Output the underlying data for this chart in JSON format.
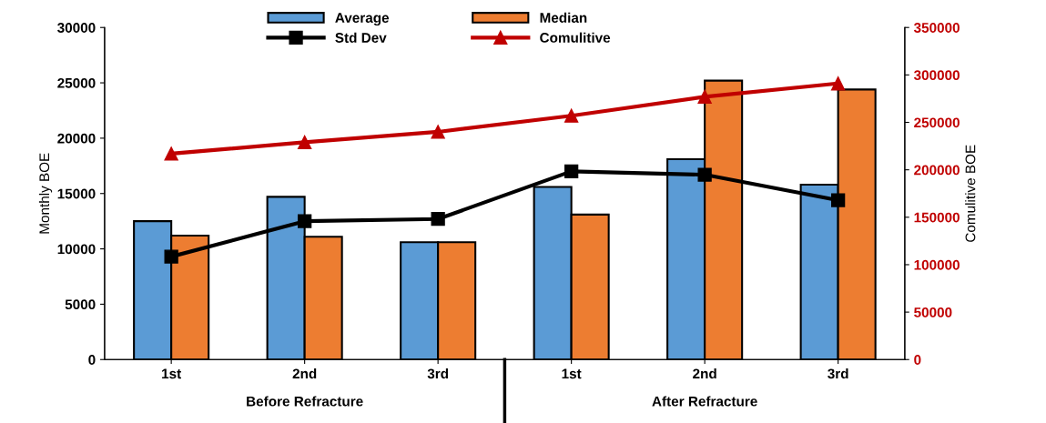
{
  "chart_data": {
    "type": "bar",
    "ylabel": "Monthly BOE",
    "y2label": "Comulitive BOE",
    "categories": [
      "1st",
      "2nd",
      "3rd",
      "1st",
      "2nd",
      "3rd"
    ],
    "series": [
      {
        "name": "Average",
        "color": "#5b9bd5",
        "values": [
          12500,
          14700,
          10600,
          15600,
          18100,
          15800
        ]
      },
      {
        "name": "Median",
        "color": "#ed7d31",
        "values": [
          11200,
          11100,
          10600,
          13100,
          25200,
          24400
        ]
      },
      {
        "name": "Std Dev",
        "type": "line",
        "color": "#000000",
        "marker": "square",
        "values": [
          9300,
          12500,
          12700,
          17000,
          16700,
          14400
        ]
      },
      {
        "name": "Comulitive",
        "type": "line",
        "color": "#c00000",
        "marker": "triangle",
        "axis": "y2",
        "values": [
          217000,
          229000,
          240000,
          257000,
          277000,
          291000
        ]
      }
    ],
    "ylim": [
      0,
      30000
    ],
    "yticks": [
      0,
      5000,
      10000,
      15000,
      20000,
      25000,
      30000
    ],
    "y2lim": [
      0,
      350000
    ],
    "y2ticks": [
      0,
      50000,
      100000,
      150000,
      200000,
      250000,
      300000,
      350000
    ],
    "annotations": [
      "Before Refracture",
      "After Refracture"
    ],
    "grid": false,
    "legend": "top"
  }
}
